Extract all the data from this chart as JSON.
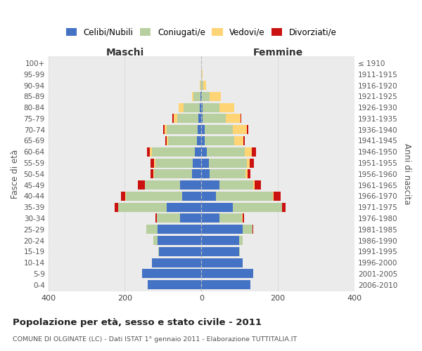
{
  "age_groups": [
    "0-4",
    "5-9",
    "10-14",
    "15-19",
    "20-24",
    "25-29",
    "30-34",
    "35-39",
    "40-44",
    "45-49",
    "50-54",
    "55-59",
    "60-64",
    "65-69",
    "70-74",
    "75-79",
    "80-84",
    "85-89",
    "90-94",
    "95-99",
    "100+"
  ],
  "birth_years": [
    "2006-2010",
    "2001-2005",
    "1996-2000",
    "1991-1995",
    "1986-1990",
    "1981-1985",
    "1976-1980",
    "1971-1975",
    "1966-1970",
    "1961-1965",
    "1956-1960",
    "1951-1955",
    "1946-1950",
    "1941-1945",
    "1936-1940",
    "1931-1935",
    "1926-1930",
    "1921-1925",
    "1916-1920",
    "1911-1915",
    "≤ 1910"
  ],
  "male_celibi": [
    140,
    155,
    130,
    110,
    115,
    115,
    55,
    90,
    50,
    55,
    25,
    22,
    18,
    12,
    10,
    8,
    5,
    2,
    0,
    0,
    0
  ],
  "male_coniugati": [
    0,
    0,
    0,
    2,
    10,
    28,
    62,
    128,
    148,
    92,
    98,
    98,
    112,
    75,
    80,
    55,
    42,
    18,
    3,
    1,
    0
  ],
  "male_vedovi": [
    0,
    0,
    0,
    0,
    0,
    0,
    0,
    0,
    1,
    1,
    2,
    3,
    4,
    4,
    7,
    10,
    12,
    5,
    1,
    0,
    0
  ],
  "male_divorziati": [
    0,
    0,
    0,
    0,
    0,
    1,
    3,
    8,
    12,
    18,
    8,
    10,
    8,
    3,
    3,
    2,
    0,
    0,
    0,
    0,
    0
  ],
  "female_nubili": [
    128,
    136,
    108,
    98,
    98,
    108,
    48,
    82,
    38,
    48,
    22,
    20,
    15,
    8,
    8,
    4,
    3,
    2,
    0,
    0,
    0
  ],
  "female_coniugate": [
    0,
    0,
    0,
    3,
    10,
    26,
    58,
    128,
    148,
    88,
    93,
    98,
    98,
    78,
    75,
    60,
    45,
    20,
    5,
    1,
    0
  ],
  "female_vedove": [
    0,
    0,
    0,
    0,
    0,
    0,
    1,
    1,
    3,
    4,
    5,
    9,
    18,
    23,
    35,
    38,
    38,
    28,
    8,
    2,
    0
  ],
  "female_divorziate": [
    0,
    0,
    0,
    0,
    0,
    2,
    4,
    9,
    18,
    16,
    9,
    10,
    12,
    4,
    4,
    2,
    0,
    0,
    0,
    0,
    0
  ],
  "colors": {
    "celibi": "#4472C4",
    "coniugati": "#b8cfa0",
    "vedovi": "#ffd475",
    "divorziati": "#cc1111"
  },
  "legend_labels": [
    "Celibi/Nubili",
    "Coniugati/e",
    "Vedovi/e",
    "Divorziati/e"
  ],
  "title": "Popolazione per età, sesso e stato civile - 2011",
  "subtitle": "COMUNE DI OLGINATE (LC) - Dati ISTAT 1° gennaio 2011 - Elaborazione TUTTITALIA.IT",
  "label_maschi": "Maschi",
  "label_femmine": "Femmine",
  "ylabel_left": "Fasce di età",
  "ylabel_right": "Anni di nascita",
  "xlim": 400,
  "background_color": "#ffffff",
  "plot_bg": "#ebebeb",
  "grid_color": "#cccccc"
}
